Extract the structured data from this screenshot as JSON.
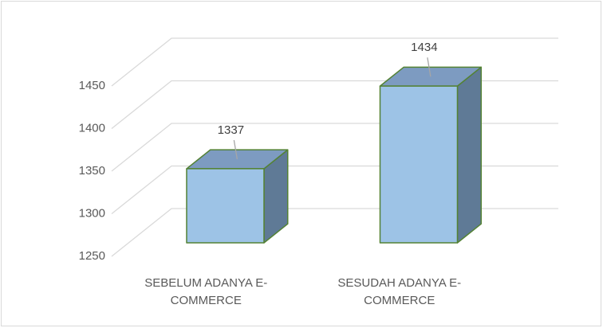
{
  "chart_data": {
    "type": "bar3d",
    "categories": [
      "SEBELUM ADANYA E-COMMERCE",
      "SESUDAH ADANYA E-COMMERCE"
    ],
    "values": [
      1337,
      1434
    ],
    "color": "#9dc3e6",
    "edge_color": "#548235",
    "ylim": [
      1250,
      1450
    ],
    "yticks": [
      1250,
      1300,
      1350,
      1400,
      1450
    ],
    "grid": true
  }
}
